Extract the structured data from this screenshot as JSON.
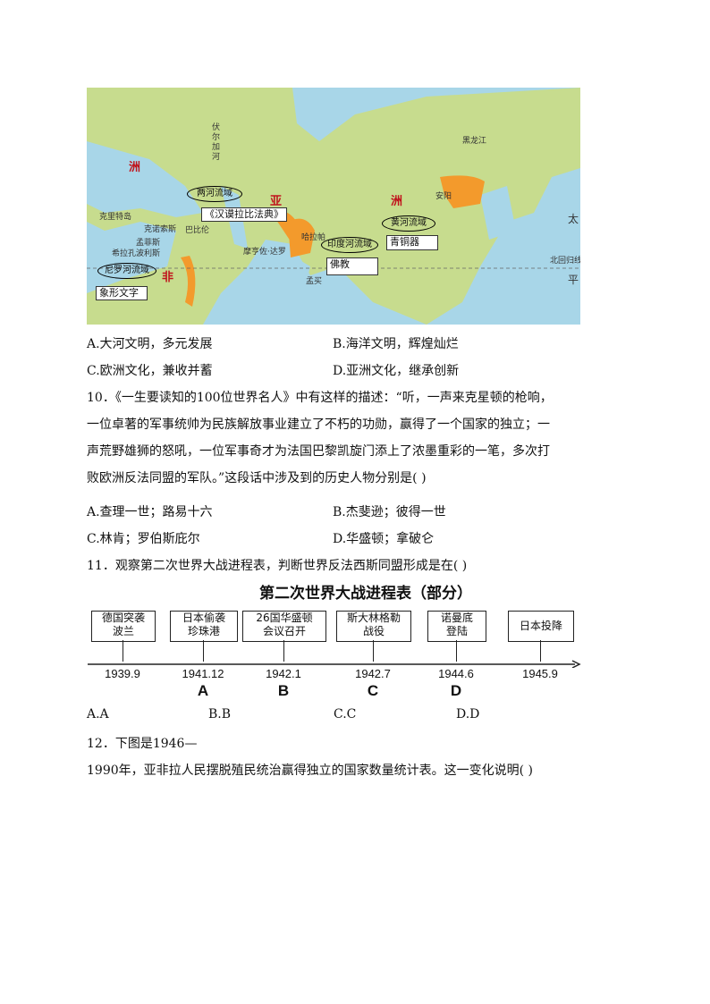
{
  "map": {
    "labels": {
      "europe": "洲",
      "asia_ya": "亚",
      "asia_zhou": "洲",
      "africa": "非",
      "crete": "克里特岛",
      "knossos": "克诺索斯",
      "babylon": "巴比伦",
      "memphis": "孟菲斯",
      "hierakonpolis": "希拉孔波利斯",
      "harappa": "哈拉帕",
      "mohenjo": "摩亨佐·达罗",
      "mumbai": "孟买",
      "anyang": "安阳",
      "volga": "伏尔加河",
      "heilong": "黑龙江",
      "pacific_tai": "太",
      "pacific_ping": "平",
      "tropic": "北回归线"
    },
    "ovals": {
      "mesopotamia": "两河流域",
      "nile": "尼罗河流域",
      "indus": "印度河流域",
      "yellow": "黄河流域"
    },
    "boxes": {
      "hammurabi": "《汉谟拉比法典》",
      "hieroglyph": "象形文字",
      "buddhism": "佛教",
      "bronze": "青铜器"
    }
  },
  "q9": {
    "options": [
      "A.大河文明，多元发展",
      "B.海洋文明，辉煌灿烂",
      "C.欧洲文化，兼收并蓄",
      "D.亚洲文化，继承创新"
    ]
  },
  "q10": {
    "lines": [
      "10．《一生要读知的100位世界名人》中有这样的描述：“听，一声来克星顿的枪响，",
      "一位卓著的军事统帅为民族解放事业建立了不朽的功勋，赢得了一个国家的独立；一",
      "声荒野雄狮的怒吼，一位军事奇才为法国巴黎凯旋门添上了浓墨重彩的一笔，多次打",
      "败欧洲反法同盟的军队。”这段话中涉及到的历史人物分别是(   )"
    ],
    "options": [
      "A.查理一世；路易十六",
      "B.杰斐逊；彼得一世",
      "C.林肯；罗伯斯庇尔",
      "D.华盛顿；拿破仑"
    ]
  },
  "q11": {
    "stem": "11．观察第二次世界大战进程表，判断世界反法西斯同盟形成是在(   )",
    "timeline": {
      "title": "第二次世界大战进程表（部分）",
      "events": [
        {
          "l1": "德国突袭",
          "l2": "波兰",
          "date": "1939.9",
          "letter": ""
        },
        {
          "l1": "日本偷袭",
          "l2": "珍珠港",
          "date": "1941.12",
          "letter": "A"
        },
        {
          "l1": "26国华盛顿",
          "l2": "会议召开",
          "date": "1942.1",
          "letter": "B"
        },
        {
          "l1": "斯大林格勒",
          "l2": "战役",
          "date": "1942.7",
          "letter": "C"
        },
        {
          "l1": "诺曼底",
          "l2": "登陆",
          "date": "1944.6",
          "letter": "D"
        },
        {
          "l1": "日本投降",
          "l2": "",
          "date": "1945.9",
          "letter": ""
        }
      ]
    },
    "options": [
      "A.A",
      "B.B",
      "C.C",
      "D.D"
    ]
  },
  "q12": {
    "lines": [
      "12．下图是1946—",
      "1990年，亚非拉人民摆脱殖民统治赢得独立的国家数量统计表。这一变化说明(   )"
    ]
  }
}
